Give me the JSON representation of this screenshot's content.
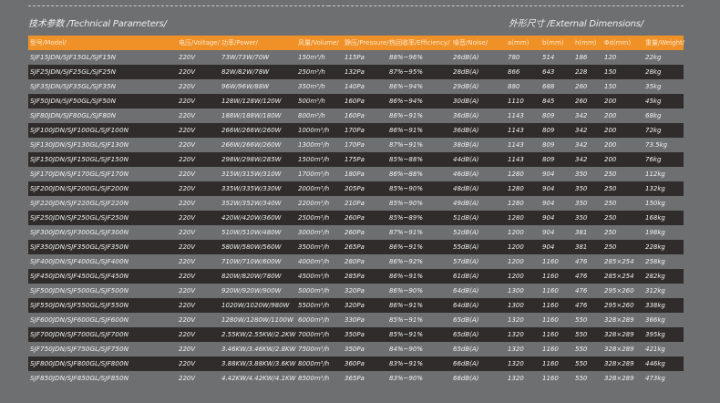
{
  "titles": {
    "technical": "技术参数 /Technical Parameters/",
    "external": "外形尺寸 /External Dimensions/"
  },
  "colors": {
    "header": "#f09128",
    "dark_row": "#2f2c2b",
    "background": "#6d6f70"
  },
  "headers": [
    "型号/Model/",
    "电压/Voltage/",
    "功率/Power/",
    "风量/Volume/",
    "静压/Pressure/",
    "热回收率/Efficiency/",
    "噪音/Noise/",
    "a(mm)",
    "b(mm)",
    "h(mm)",
    "Φd(mm)",
    "重量/Weight/"
  ],
  "rows": [
    [
      "SJF15JDN/SJF15GL/SJF15N",
      "220V",
      "73W/73W/70W",
      "150m³/h",
      "115Pa",
      "88%~96%",
      "26dB(A)",
      "780",
      "514",
      "186",
      "120",
      "22kg"
    ],
    [
      "SJF25JDN/SJF25GL/SJF25N",
      "220V",
      "82W/82W/78W",
      "250m³/h",
      "132Pa",
      "87%~95%",
      "28dB(A)",
      "866",
      "643",
      "228",
      "150",
      "28kg"
    ],
    [
      "SJF35JDN/SJF35GL/SJF35N",
      "220V",
      "96W/96W/88W",
      "350m³/h",
      "140Pa",
      "86%~94%",
      "29dB(A)",
      "880",
      "688",
      "260",
      "150",
      "35kg"
    ],
    [
      "SJF50JDN/SJF50GL/SJF50N",
      "220V",
      "128W/128W/120W",
      "500m³/h",
      "160Pa",
      "86%~94%",
      "30dB(A)",
      "1110",
      "845",
      "260",
      "200",
      "45kg"
    ],
    [
      "SJF80JDN/SJF80GL/SJF80N",
      "220V",
      "188W/188W/180W",
      "800m³/h",
      "160Pa",
      "86%~91%",
      "36dB(A)",
      "1143",
      "809",
      "342",
      "200",
      "68kg"
    ],
    [
      "SJF100JDN/SJF100GL/SJF100N",
      "220V",
      "266W/266W/260W",
      "1000m³/h",
      "170Pa",
      "86%~91%",
      "36dB(A)",
      "1143",
      "809",
      "342",
      "200",
      "72kg"
    ],
    [
      "SJF130JDN/SJF130GL/SJF130N",
      "220V",
      "266W/266W/260W",
      "1300m³/h",
      "170Pa",
      "87%~91%",
      "38dB(A)",
      "1143",
      "809",
      "342",
      "200",
      "73.5kg"
    ],
    [
      "SJF150JDN/SJF150GL/SJF150N",
      "220V",
      "298W/298W/285W",
      "1500m³/h",
      "175Pa",
      "85%~88%",
      "44dB(A)",
      "1143",
      "809",
      "342",
      "200",
      "76kg"
    ],
    [
      "SJF170JDN/SJF170GL/SJF170N",
      "220V",
      "315W/315W/310W",
      "1700m³/h",
      "180Pa",
      "86%~88%",
      "46dB(A)",
      "1280",
      "904",
      "350",
      "250",
      "112kg"
    ],
    [
      "SJF200JDN/SJF200GL/SJF200N",
      "220V",
      "335W/335W/330W",
      "2000m³/h",
      "205Pa",
      "85%~90%",
      "48dB(A)",
      "1280",
      "904",
      "350",
      "250",
      "132kg"
    ],
    [
      "SJF220JDN/SJF220GL/SJF220N",
      "220V",
      "352W/352W/340W",
      "2200m³/h",
      "210Pa",
      "85%~90%",
      "49dB(A)",
      "1280",
      "904",
      "350",
      "250",
      "150kg"
    ],
    [
      "SJF250JDN/SJF250GL/SJF250N",
      "220V",
      "420W/420W/360W",
      "2500m³/h",
      "260Pa",
      "85%~89%",
      "51dB(A)",
      "1280",
      "904",
      "350",
      "250",
      "168kg"
    ],
    [
      "SJF300JDN/SJF300GL/SJF300N",
      "220V",
      "510W/510W/480W",
      "3000m³/h",
      "260Pa",
      "87%~91%",
      "52dB(A)",
      "1200",
      "904",
      "381",
      "250",
      "198kg"
    ],
    [
      "SJF350JDN/SJF350GL/SJF350N",
      "220V",
      "580W/580W/560W",
      "3500m³/h",
      "265Pa",
      "86%~91%",
      "55dB(A)",
      "1200",
      "904",
      "381",
      "250",
      "228kg"
    ],
    [
      "SJF400JDN/SJF400GL/SJF400N",
      "220V",
      "710W/710W/600W",
      "4000m³/h",
      "280Pa",
      "86%~92%",
      "57dB(A)",
      "1200",
      "1160",
      "476",
      "285×254",
      "258kg"
    ],
    [
      "SJF450JDN/SJF450GL/SJF450N",
      "220V",
      "820W/820W/780W",
      "4500m³/h",
      "285Pa",
      "86%~91%",
      "61dB(A)",
      "1200",
      "1160",
      "476",
      "285×254",
      "282kg"
    ],
    [
      "SJF500JDN/SJF500GL/SJF500N",
      "220V",
      "920W/920W/900W",
      "5000m³/h",
      "320Pa",
      "86%~90%",
      "64dB(A)",
      "1300",
      "1160",
      "476",
      "295×260",
      "312kg"
    ],
    [
      "SJF550JDN/SJF550GL/SJF550N",
      "220V",
      "1020W/1020W/980W",
      "5500m³/h",
      "320Pa",
      "86%~91%",
      "64dB(A)",
      "1300",
      "1160",
      "476",
      "295×260",
      "338kg"
    ],
    [
      "SJF600JDN/SJF600GL/SJF600N",
      "220V",
      "1280W/1280W/1100W",
      "6000m³/h",
      "330Pa",
      "85%~91%",
      "65dB(A)",
      "1320",
      "1160",
      "550",
      "328×289",
      "366kg"
    ],
    [
      "SJF700JDN/SJF700GL/SJF700N",
      "220V",
      "2.55KW/2.55KW/2.2KW",
      "7000m³/h",
      "350Pa",
      "85%~91%",
      "65dB(A)",
      "1320",
      "1160",
      "550",
      "328×289",
      "395kg"
    ],
    [
      "SJF750JDN/SJF750GL/SJF750N",
      "220V",
      "3.46KW/3.46KW/2.8KW",
      "7500m³/h",
      "350Pa",
      "84%~90%",
      "65dB(A)",
      "1320",
      "1160",
      "550",
      "328×289",
      "421kg"
    ],
    [
      "SJF800JDN/SJF800GL/SJF800N",
      "220V",
      "3.88KW/3.88KW/3.6KW",
      "8000m³/h",
      "360Pa",
      "83%~91%",
      "66dB(A)",
      "1320",
      "1160",
      "550",
      "328×289",
      "446kg"
    ],
    [
      "SJF850JDN/SJF850GL/SJF850N",
      "220V",
      "4.42KW/4.42KW/4.1KW",
      "8500m³/h",
      "365Pa",
      "83%~90%",
      "66dB(A)",
      "1320",
      "1160",
      "550",
      "328×289",
      "473kg"
    ]
  ]
}
